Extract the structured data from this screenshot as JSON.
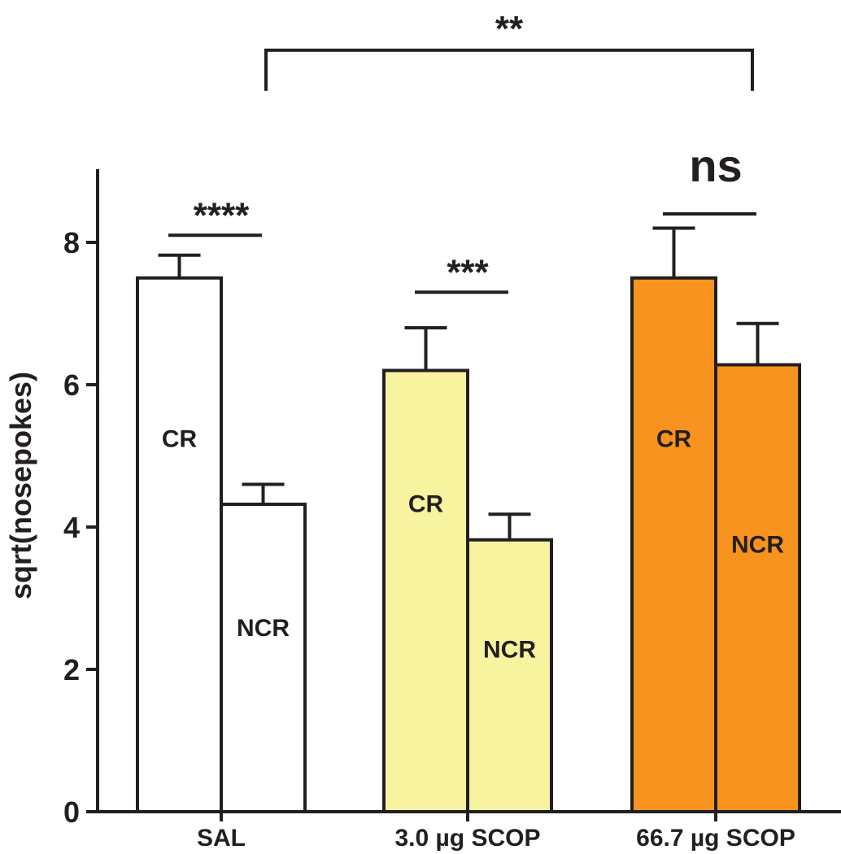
{
  "chart_data": {
    "type": "bar",
    "ylabel": "sqrt(nosepokes)",
    "xlabel": "",
    "ylim": [
      0,
      9
    ],
    "yticks": [
      0,
      2,
      4,
      6,
      8
    ],
    "categories": [
      "SAL",
      "3.0 µg SCOP",
      "66.7 µg SCOP"
    ],
    "series": [
      {
        "name": "CR",
        "values": [
          7.5,
          6.2,
          7.5
        ],
        "errors": [
          0.32,
          0.6,
          0.7
        ]
      },
      {
        "name": "NCR",
        "values": [
          4.32,
          3.82,
          6.28
        ],
        "errors": [
          0.28,
          0.36,
          0.58
        ]
      }
    ],
    "group_colors": [
      "#ffffff",
      "#f8f39f",
      "#f7931e"
    ],
    "annotations": [
      {
        "text": "****",
        "group": 0,
        "y": 8.1
      },
      {
        "text": "***",
        "group": 1,
        "y": 7.3
      },
      {
        "text": "ns",
        "group": 2,
        "y": 8.4
      },
      {
        "text": "**",
        "from_group": 0,
        "to_group": 2,
        "y": 10.7
      }
    ],
    "grid": false,
    "legend": "none"
  }
}
